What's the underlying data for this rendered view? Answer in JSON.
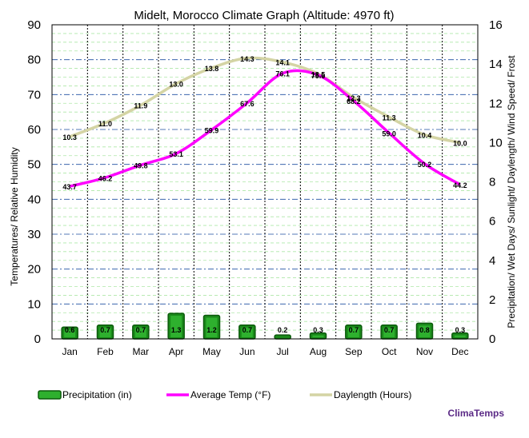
{
  "chart_data": {
    "type": "bar+line",
    "title": "Midelt, Morocco Climate Graph (Altitude: 4970 ft)",
    "categories": [
      "Jan",
      "Feb",
      "Mar",
      "Apr",
      "May",
      "Jun",
      "Jul",
      "Aug",
      "Sep",
      "Oct",
      "Nov",
      "Dec"
    ],
    "ylabel_left": "Temperatures/ Relative Humidity",
    "ylabel_right": "Precipitation/ Wet Days/ Sunlight/ Daylength/ Wind Speed/ Frost",
    "ylim_left": [
      0,
      90
    ],
    "ylim_right": [
      0,
      16
    ],
    "yticks_left": [
      "0",
      "10",
      "20",
      "30",
      "40",
      "50",
      "60",
      "70",
      "80",
      "90"
    ],
    "yticks_right": [
      "0",
      "2",
      "4",
      "6",
      "8",
      "10",
      "12",
      "14",
      "16"
    ],
    "grid": true,
    "series": [
      {
        "name": "Precipitation (in)",
        "type": "bar",
        "axis": "right",
        "color": "#1a8a1a",
        "values": [
          0.6,
          0.7,
          0.7,
          1.3,
          1.2,
          0.7,
          0.2,
          0.3,
          0.7,
          0.7,
          0.8,
          0.3
        ],
        "labels": [
          "0.6",
          "0.7",
          "0.7",
          "1.3",
          "1.2",
          "0.7",
          "0.2",
          "0.3",
          "0.7",
          "0.7",
          "0.8",
          "0.3"
        ]
      },
      {
        "name": "Average Temp (°F)",
        "type": "line",
        "axis": "left",
        "color": "#ff00ff",
        "values": [
          43.7,
          46.2,
          49.8,
          53.1,
          59.9,
          67.6,
          76.1,
          75.6,
          68.2,
          59.0,
          50.2,
          44.2
        ],
        "labels": [
          "43.7",
          "46.2",
          "49.8",
          "53.1",
          "59.9",
          "67.6",
          "76.1",
          "75.6",
          "68.2",
          "59.0",
          "50.2",
          "44.2"
        ]
      },
      {
        "name": "Daylength (Hours)",
        "type": "line",
        "axis": "right",
        "color": "#d4d4a4",
        "values": [
          10.3,
          11.0,
          11.9,
          13.0,
          13.8,
          14.3,
          14.1,
          13.5,
          12.3,
          11.3,
          10.4,
          10.0
        ],
        "labels": [
          "10.3",
          "11.0",
          "11.9",
          "13.0",
          "13.8",
          "14.3",
          "14.1",
          "13.5",
          "12.3",
          "11.3",
          "10.4",
          "10.0"
        ]
      }
    ],
    "legend_position": "bottom",
    "brand": "ClimaTemps"
  }
}
